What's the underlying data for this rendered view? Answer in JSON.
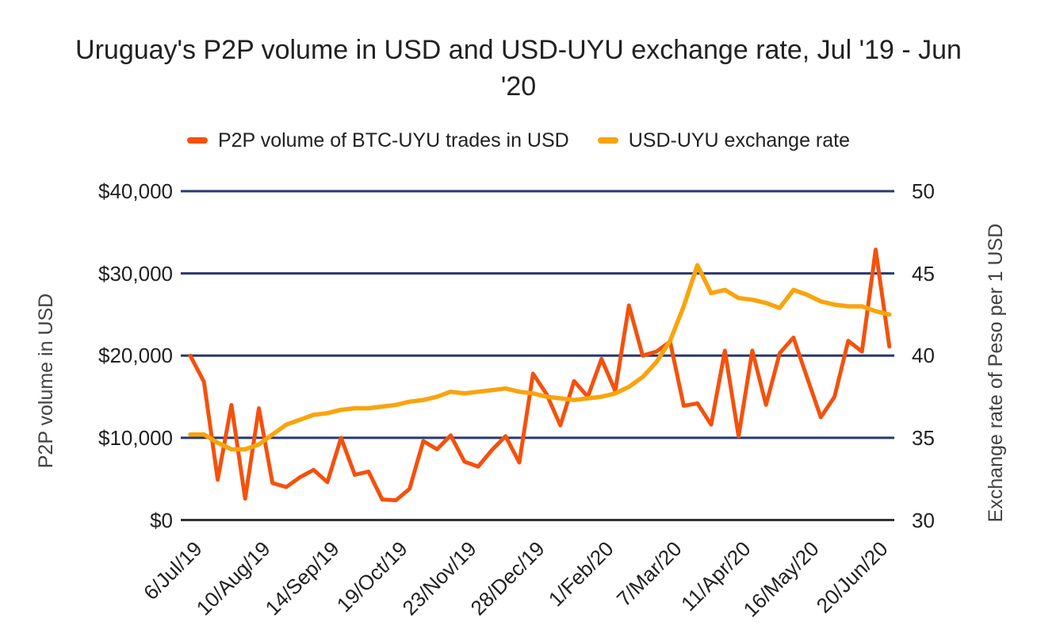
{
  "title": "Uruguay's P2P volume in USD and USD-UYU exchange rate, Jul '19 - Jun '20",
  "legend": [
    {
      "label": "P2P volume of BTC-UYU trades in USD",
      "color": "#F4510D"
    },
    {
      "label": "USD-UYU exchange rate",
      "color": "#F9A40D"
    }
  ],
  "colors": {
    "background": "#FFFFFF",
    "grid": "#273970",
    "baseline": "#333333",
    "text": "#212121",
    "axis_title_text": "#424242"
  },
  "chart_data": {
    "type": "line",
    "title": "Uruguay's P2P volume in USD and USD-UYU exchange rate, Jul '19 - Jun '20",
    "grid": true,
    "legend_position": "top",
    "x": [
      "6/Jul/19",
      "13/Jul/19",
      "20/Jul/19",
      "27/Jul/19",
      "3/Aug/19",
      "10/Aug/19",
      "17/Aug/19",
      "24/Aug/19",
      "31/Aug/19",
      "7/Sep/19",
      "14/Sep/19",
      "21/Sep/19",
      "28/Sep/19",
      "5/Oct/19",
      "12/Oct/19",
      "19/Oct/19",
      "26/Oct/19",
      "2/Nov/19",
      "9/Nov/19",
      "16/Nov/19",
      "23/Nov/19",
      "30/Nov/19",
      "7/Dec/19",
      "14/Dec/19",
      "21/Dec/19",
      "28/Dec/19",
      "4/Jan/20",
      "11/Jan/20",
      "18/Jan/20",
      "25/Jan/20",
      "1/Feb/20",
      "8/Feb/20",
      "15/Feb/20",
      "22/Feb/20",
      "29/Feb/20",
      "7/Mar/20",
      "14/Mar/20",
      "21/Mar/20",
      "28/Mar/20",
      "4/Apr/20",
      "11/Apr/20",
      "18/Apr/20",
      "25/Apr/20",
      "2/May/20",
      "9/May/20",
      "16/May/20",
      "23/May/20",
      "30/May/20",
      "6/Jun/20",
      "13/Jun/20",
      "20/Jun/20",
      "27/Jun/20"
    ],
    "x_tick_indices": [
      0,
      5,
      10,
      15,
      20,
      25,
      30,
      35,
      40,
      45,
      50
    ],
    "x_tick_labels": [
      "6/Jul/19",
      "10/Aug/19",
      "14/Sep/19",
      "19/Oct/19",
      "23/Nov/19",
      "28/Dec/19",
      "1/Feb/20",
      "7/Mar/20",
      "11/Apr/20",
      "16/May/20",
      "20/Jun/20"
    ],
    "series": [
      {
        "name": "P2P volume of BTC-UYU trades in USD",
        "axis": "left",
        "color": "#F4510D",
        "values": [
          20000,
          16800,
          4900,
          14000,
          2600,
          13600,
          4500,
          4000,
          5200,
          6100,
          4600,
          10000,
          5500,
          5900,
          2500,
          2400,
          3800,
          9600,
          8600,
          10300,
          7100,
          6500,
          8500,
          10200,
          7000,
          17800,
          15300,
          11500,
          16900,
          15000,
          19600,
          15700,
          26100,
          20000,
          20500,
          21700,
          13900,
          14200,
          11600,
          20600,
          10200,
          20600,
          14000,
          20300,
          22200,
          17300,
          12500,
          15000,
          21800,
          20500,
          32900,
          21100
        ]
      },
      {
        "name": "USD-UYU exchange rate",
        "axis": "right",
        "color": "#F9A40D",
        "values": [
          35.2,
          35.2,
          34.7,
          34.3,
          34.3,
          34.6,
          35.2,
          35.8,
          36.1,
          36.4,
          36.5,
          36.7,
          36.8,
          36.8,
          36.9,
          37.0,
          37.2,
          37.3,
          37.5,
          37.8,
          37.7,
          37.8,
          37.9,
          38.0,
          37.8,
          37.7,
          37.5,
          37.4,
          37.3,
          37.4,
          37.5,
          37.7,
          38.1,
          38.7,
          39.6,
          40.9,
          43.0,
          45.5,
          43.8,
          44.0,
          43.5,
          43.4,
          43.2,
          42.9,
          44.0,
          43.7,
          43.3,
          43.1,
          43.0,
          43.0,
          42.7,
          42.5
        ]
      }
    ],
    "left_axis": {
      "title": "P2P volume in USD",
      "min": 0,
      "max": 40000,
      "tick_values": [
        0,
        10000,
        20000,
        30000,
        40000
      ],
      "tick_labels": [
        "$0",
        "$10,000",
        "$20,000",
        "$30,000",
        "$40,000"
      ]
    },
    "right_axis": {
      "title": "Exchange rate of Peso per 1 USD",
      "min": 30,
      "max": 50,
      "tick_values": [
        30,
        35,
        40,
        45,
        50
      ],
      "tick_labels": [
        "30",
        "35",
        "40",
        "45",
        "50"
      ]
    }
  }
}
